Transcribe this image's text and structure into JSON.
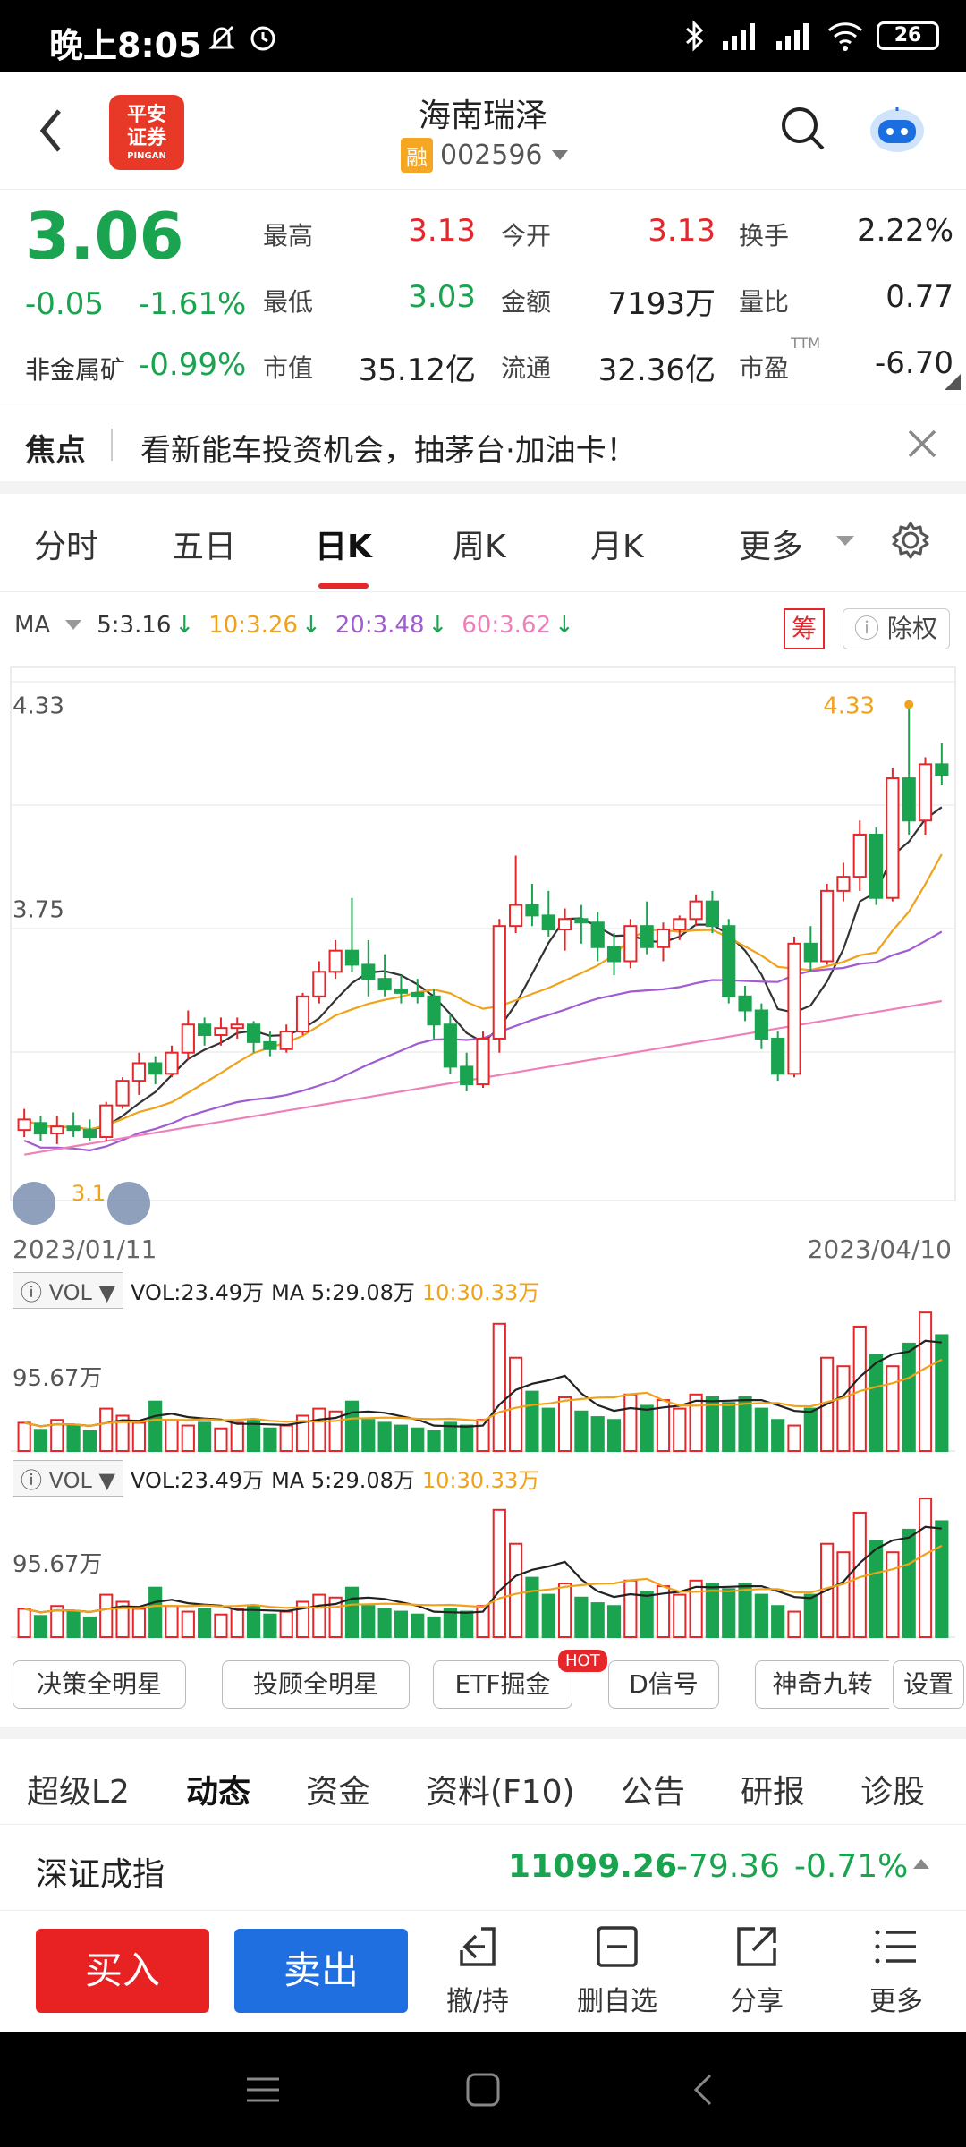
{
  "status_bar": {
    "time": "晚上8:05",
    "battery": "26"
  },
  "header": {
    "stock_name": "海南瑞泽",
    "margin_tag": "融",
    "stock_code": "002596",
    "logo_line1": "平安",
    "logo_line2": "证券",
    "logo_sub": "PINGAN"
  },
  "quote": {
    "price": "3.06",
    "change": "-0.05",
    "change_pct": "-1.61%",
    "sector_label": "非金属矿",
    "sector_change": "-0.99%",
    "high_label": "最高",
    "high": "3.13",
    "open_label": "今开",
    "open": "3.13",
    "turnover_label": "换手",
    "turnover": "2.22%",
    "low_label": "最低",
    "low": "3.03",
    "amount_label": "金额",
    "amount": "7193万",
    "volratio_label": "量比",
    "volratio": "0.77",
    "mktcap_label": "市值",
    "mktcap": "35.12亿",
    "float_label": "流通",
    "float": "32.36亿",
    "pe_label": "市盈",
    "pe_sup": "TTM",
    "pe": "-6.70"
  },
  "news": {
    "label": "焦点",
    "text": "看新能车投资机会，抽茅台·加油卡！"
  },
  "chart_tabs": [
    "分时",
    "五日",
    "日K",
    "周K",
    "月K",
    "更多"
  ],
  "active_chart_tab": "日K",
  "ma": {
    "label": "MA",
    "ma5": "5:3.16",
    "ma10": "10:3.26",
    "ma20": "20:3.48",
    "ma60": "60:3.62",
    "chou": "筹",
    "chuquan": "除权",
    "colors": {
      "ma5": "#333333",
      "ma10": "#f0a21a",
      "ma20": "#a05cd0",
      "ma60": "#ef7fb8"
    }
  },
  "chart": {
    "y_high_label": "4.33",
    "y_mid_label": "3.75",
    "max_marker": "4.33",
    "min_marker": "3.1",
    "date_start": "2023/01/11",
    "date_end": "2023/04/10"
  },
  "vol1": {
    "label": "VOL",
    "vol": "VOL:23.49万",
    "ma5": "MA 5:29.08万",
    "ma10": "10:30.33万",
    "scale": "95.67万"
  },
  "vol2": {
    "label": "VOL",
    "vol": "VOL:23.49万",
    "ma5": "MA 5:29.08万",
    "ma10": "10:30.33万",
    "scale": "95.67万"
  },
  "indicator_pills": [
    "决策全明星",
    "投顾全明星",
    "ETF掘金",
    "D信号",
    "神奇九转",
    "设置"
  ],
  "hot_badge": "HOT",
  "bottom_tabs": [
    "超级L2",
    "动态",
    "资金",
    "资料(F10)",
    "公告",
    "研报",
    "诊股"
  ],
  "active_bottom_tab": "动态",
  "index": {
    "name": "深证成指",
    "value": "11099.26",
    "change": "-79.36",
    "change_pct": "-0.71%"
  },
  "actions": {
    "buy": "买入",
    "sell": "卖出",
    "withdraw": "撤/持",
    "remove": "删自选",
    "share": "分享",
    "more": "更多"
  },
  "candles": [
    {
      "o": 3.12,
      "h": 3.18,
      "l": 3.1,
      "c": 3.15
    },
    {
      "o": 3.14,
      "h": 3.16,
      "l": 3.09,
      "c": 3.11
    },
    {
      "o": 3.11,
      "h": 3.16,
      "l": 3.08,
      "c": 3.13
    },
    {
      "o": 3.13,
      "h": 3.17,
      "l": 3.1,
      "c": 3.12
    },
    {
      "o": 3.12,
      "h": 3.15,
      "l": 3.09,
      "c": 3.1
    },
    {
      "o": 3.1,
      "h": 3.2,
      "l": 3.09,
      "c": 3.19
    },
    {
      "o": 3.19,
      "h": 3.27,
      "l": 3.18,
      "c": 3.26
    },
    {
      "o": 3.26,
      "h": 3.34,
      "l": 3.22,
      "c": 3.31
    },
    {
      "o": 3.31,
      "h": 3.33,
      "l": 3.25,
      "c": 3.28
    },
    {
      "o": 3.28,
      "h": 3.36,
      "l": 3.27,
      "c": 3.34
    },
    {
      "o": 3.34,
      "h": 3.46,
      "l": 3.32,
      "c": 3.42
    },
    {
      "o": 3.42,
      "h": 3.44,
      "l": 3.36,
      "c": 3.39
    },
    {
      "o": 3.39,
      "h": 3.44,
      "l": 3.36,
      "c": 3.41
    },
    {
      "o": 3.41,
      "h": 3.44,
      "l": 3.38,
      "c": 3.42
    },
    {
      "o": 3.42,
      "h": 3.43,
      "l": 3.34,
      "c": 3.37
    },
    {
      "o": 3.37,
      "h": 3.4,
      "l": 3.33,
      "c": 3.35
    },
    {
      "o": 3.35,
      "h": 3.42,
      "l": 3.34,
      "c": 3.4
    },
    {
      "o": 3.4,
      "h": 3.51,
      "l": 3.39,
      "c": 3.5
    },
    {
      "o": 3.5,
      "h": 3.6,
      "l": 3.48,
      "c": 3.57
    },
    {
      "o": 3.57,
      "h": 3.66,
      "l": 3.55,
      "c": 3.63
    },
    {
      "o": 3.63,
      "h": 3.78,
      "l": 3.57,
      "c": 3.59
    },
    {
      "o": 3.59,
      "h": 3.66,
      "l": 3.5,
      "c": 3.55
    },
    {
      "o": 3.55,
      "h": 3.62,
      "l": 3.5,
      "c": 3.52
    },
    {
      "o": 3.52,
      "h": 3.56,
      "l": 3.48,
      "c": 3.51
    },
    {
      "o": 3.51,
      "h": 3.55,
      "l": 3.48,
      "c": 3.5
    },
    {
      "o": 3.5,
      "h": 3.52,
      "l": 3.38,
      "c": 3.42
    },
    {
      "o": 3.42,
      "h": 3.45,
      "l": 3.28,
      "c": 3.3
    },
    {
      "o": 3.3,
      "h": 3.34,
      "l": 3.23,
      "c": 3.25
    },
    {
      "o": 3.25,
      "h": 3.4,
      "l": 3.24,
      "c": 3.38
    },
    {
      "o": 3.38,
      "h": 3.72,
      "l": 3.34,
      "c": 3.7
    },
    {
      "o": 3.7,
      "h": 3.9,
      "l": 3.68,
      "c": 3.76
    },
    {
      "o": 3.76,
      "h": 3.82,
      "l": 3.7,
      "c": 3.73
    },
    {
      "o": 3.73,
      "h": 3.8,
      "l": 3.67,
      "c": 3.69
    },
    {
      "o": 3.69,
      "h": 3.75,
      "l": 3.63,
      "c": 3.72
    },
    {
      "o": 3.72,
      "h": 3.76,
      "l": 3.65,
      "c": 3.71
    },
    {
      "o": 3.71,
      "h": 3.74,
      "l": 3.6,
      "c": 3.64
    },
    {
      "o": 3.64,
      "h": 3.68,
      "l": 3.56,
      "c": 3.6
    },
    {
      "o": 3.6,
      "h": 3.72,
      "l": 3.58,
      "c": 3.7
    },
    {
      "o": 3.7,
      "h": 3.77,
      "l": 3.62,
      "c": 3.64
    },
    {
      "o": 3.64,
      "h": 3.71,
      "l": 3.6,
      "c": 3.69
    },
    {
      "o": 3.69,
      "h": 3.73,
      "l": 3.66,
      "c": 3.72
    },
    {
      "o": 3.72,
      "h": 3.79,
      "l": 3.7,
      "c": 3.77
    },
    {
      "o": 3.77,
      "h": 3.8,
      "l": 3.68,
      "c": 3.7
    },
    {
      "o": 3.7,
      "h": 3.72,
      "l": 3.48,
      "c": 3.5
    },
    {
      "o": 3.5,
      "h": 3.53,
      "l": 3.43,
      "c": 3.46
    },
    {
      "o": 3.46,
      "h": 3.48,
      "l": 3.35,
      "c": 3.38
    },
    {
      "o": 3.38,
      "h": 3.4,
      "l": 3.26,
      "c": 3.28
    },
    {
      "o": 3.28,
      "h": 3.67,
      "l": 3.27,
      "c": 3.65
    },
    {
      "o": 3.65,
      "h": 3.7,
      "l": 3.57,
      "c": 3.6
    },
    {
      "o": 3.6,
      "h": 3.82,
      "l": 3.59,
      "c": 3.8
    },
    {
      "o": 3.8,
      "h": 3.88,
      "l": 3.77,
      "c": 3.84
    },
    {
      "o": 3.84,
      "h": 4.0,
      "l": 3.8,
      "c": 3.96
    },
    {
      "o": 3.96,
      "h": 3.98,
      "l": 3.76,
      "c": 3.78
    },
    {
      "o": 3.78,
      "h": 4.15,
      "l": 3.77,
      "c": 4.12
    },
    {
      "o": 4.12,
      "h": 4.33,
      "l": 3.96,
      "c": 4.0
    },
    {
      "o": 4.0,
      "h": 4.18,
      "l": 3.96,
      "c": 4.16
    },
    {
      "o": 4.16,
      "h": 4.22,
      "l": 4.1,
      "c": 4.13
    }
  ],
  "volume_ratios": [
    0.2,
    0.15,
    0.22,
    0.18,
    0.14,
    0.3,
    0.25,
    0.2,
    0.35,
    0.22,
    0.18,
    0.2,
    0.16,
    0.2,
    0.22,
    0.16,
    0.18,
    0.25,
    0.3,
    0.28,
    0.35,
    0.22,
    0.2,
    0.18,
    0.16,
    0.14,
    0.2,
    0.18,
    0.22,
    0.9,
    0.66,
    0.42,
    0.3,
    0.38,
    0.28,
    0.24,
    0.22,
    0.4,
    0.32,
    0.36,
    0.3,
    0.4,
    0.38,
    0.34,
    0.38,
    0.3,
    0.22,
    0.18,
    0.3,
    0.66,
    0.6,
    0.88,
    0.68,
    0.6,
    0.76,
    0.98,
    0.82
  ]
}
